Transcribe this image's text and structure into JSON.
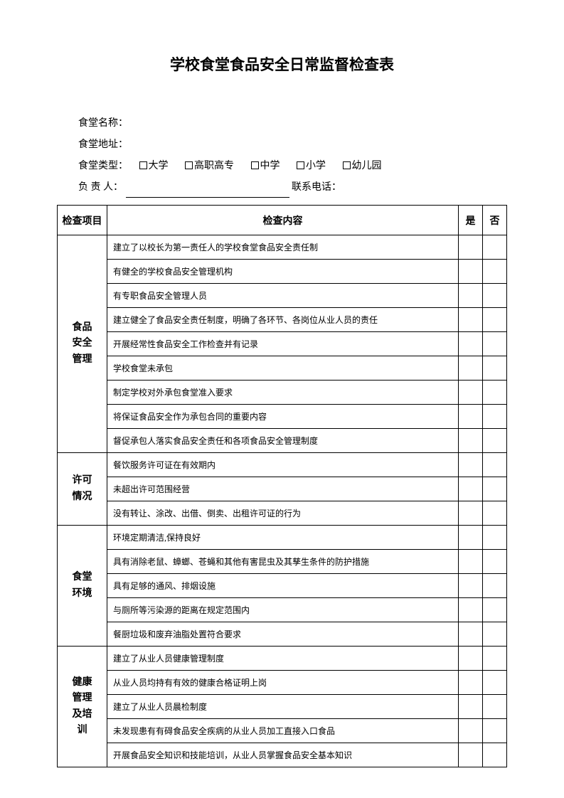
{
  "title": "学校食堂食品安全日常监督检查表",
  "info": {
    "name_label": "食堂名称：",
    "address_label": "食堂地址：",
    "type_label": "食堂类型：",
    "types": [
      "大学",
      "高职高专",
      "中学",
      "小学",
      "幼儿园"
    ],
    "person_label": "负 责  人：",
    "contact_label": "联系电话："
  },
  "table": {
    "headers": {
      "project": "检查项目",
      "content": "检查内容",
      "yes": "是",
      "no": "否"
    },
    "sections": [
      {
        "category": "食品安全管理",
        "items": [
          "建立了以校长为第一责任人的学校食堂食品安全责任制",
          "有健全的学校食品安全管理机构",
          "有专职食品安全管理人员",
          "建立健全了食品安全责任制度，明确了各环节、各岗位从业人员的责任",
          "开展经常性食品安全工作检查并有记录",
          "学校食堂未承包",
          "制定学校对外承包食堂准入要求",
          "将保证食品安全作为承包合同的重要内容",
          "督促承包人落实食品安全责任和各项食品安全管理制度"
        ]
      },
      {
        "category": "许可情况",
        "items": [
          "餐饮服务许可证在有效期内",
          "未超出许可范围经营",
          "没有转让、涂改、出借、倒卖、出租许可证的行为"
        ]
      },
      {
        "category": "食堂环境",
        "items": [
          "环境定期清洁,保持良好",
          "具有消除老鼠、蟑螂、苍蝇和其他有害昆虫及其孳生条件的防护措施",
          "具有足够的通风、排烟设施",
          "与厕所等污染源的距离在规定范围内",
          "餐厨垃圾和废弃油脂处置符合要求"
        ]
      },
      {
        "category": "健康管理及培训",
        "items": [
          "建立了从业人员健康管理制度",
          "从业人员均持有有效的健康合格证明上岗",
          "建立了从业人员晨检制度",
          "未发现患有有碍食品安全疾病的从业人员加工直接入口食品",
          "开展食品安全知识和技能培训，从业人员掌握食品安全基本知识"
        ]
      }
    ]
  }
}
